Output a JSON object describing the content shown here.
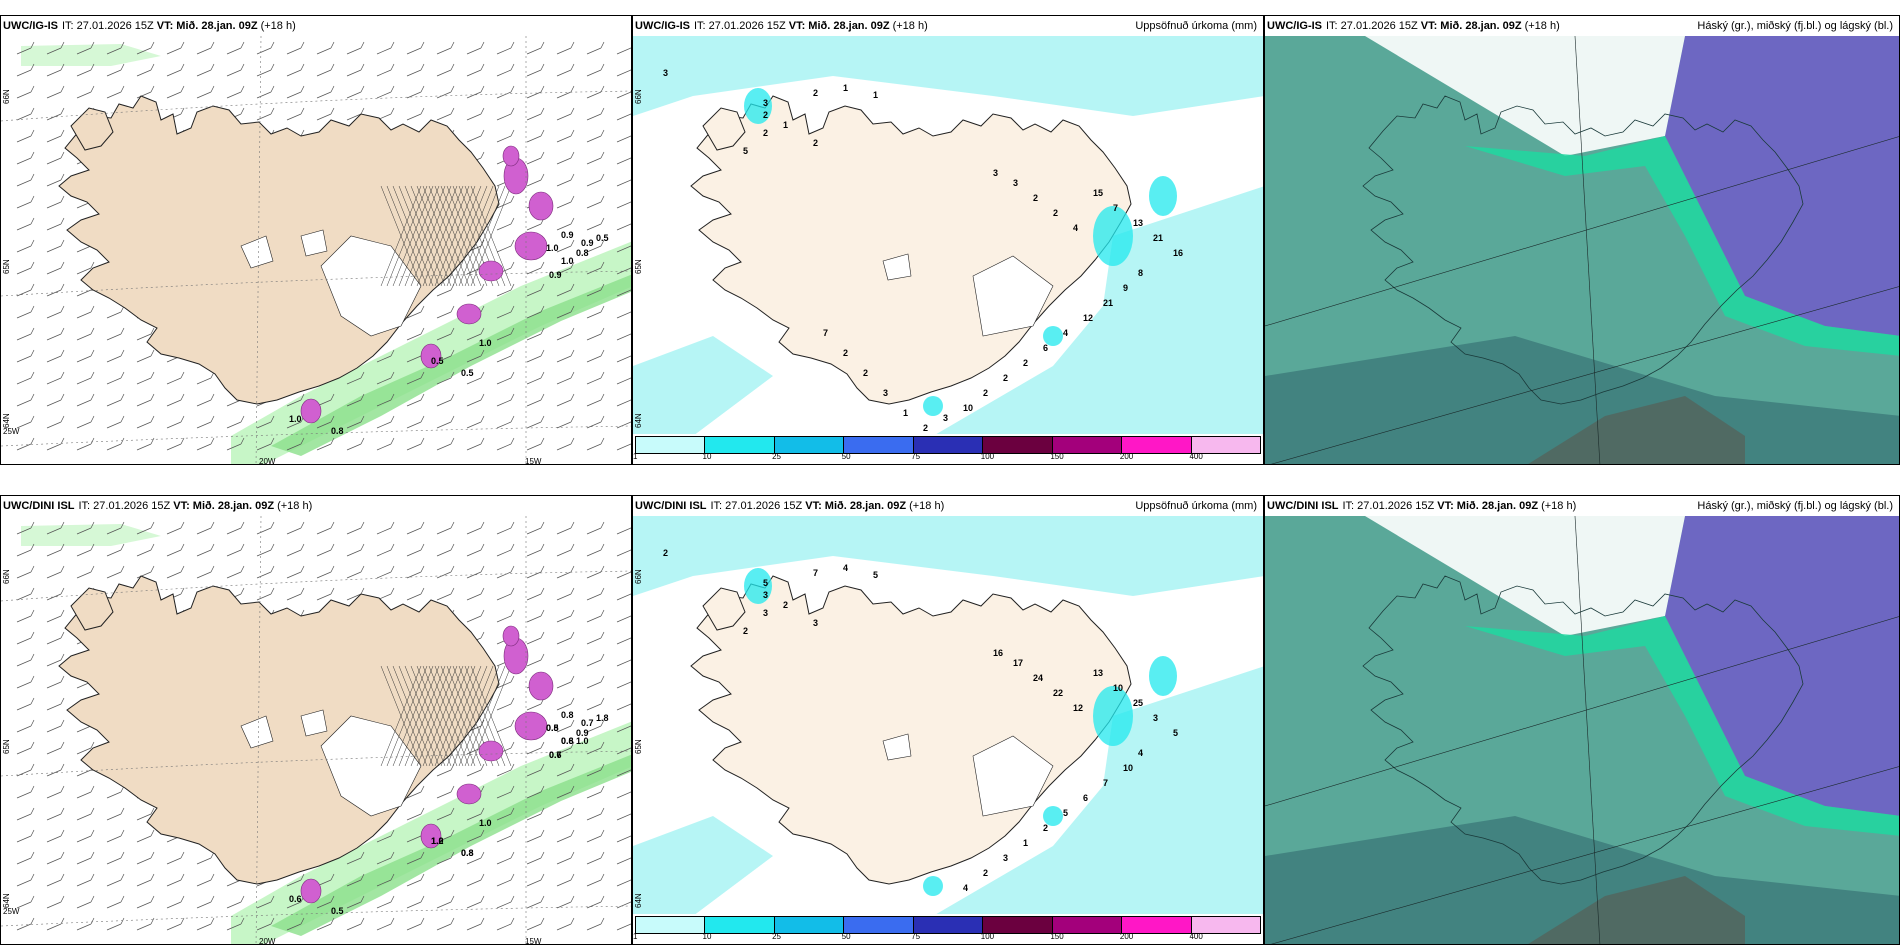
{
  "panels": [
    {
      "model": "UWC/IG-IS",
      "it": "IT: 27.01.2026 15Z",
      "vt": "VT: Mið. 28.jan. 09Z",
      "lead": "(+18 h)",
      "title": "",
      "labels": [
        "1.0",
        "1.0",
        "0.9",
        "0.5",
        "0.5",
        "1.0",
        "1.0",
        "0.8",
        "0.9",
        "0.8",
        "0.9",
        "0.5"
      ],
      "axis": [
        "66N",
        "65N",
        "64N",
        "25W",
        "20W",
        "15W"
      ]
    },
    {
      "model": "UWC/IG-IS",
      "it": "IT: 27.01.2026 15Z",
      "vt": "VT: Mið. 28.jan. 09Z",
      "lead": "(+18 h)",
      "title": "Uppsöfnuð úrkoma (mm)",
      "labels": [
        "3",
        "2",
        "1",
        "1",
        "2",
        "2",
        "2",
        "1",
        "5",
        "3",
        "3",
        "3",
        "2",
        "2",
        "4",
        "15",
        "7",
        "13",
        "21",
        "16",
        "8",
        "9",
        "21",
        "12",
        "4",
        "6",
        "2",
        "2",
        "2",
        "10",
        "3",
        "2",
        "1",
        "3",
        "2",
        "2",
        "7"
      ],
      "axis": [
        "66N",
        "65N",
        "64N"
      ]
    },
    {
      "model": "UWC/IG-IS",
      "it": "IT: 27.01.2026 15Z",
      "vt": "VT: Mið. 28.jan. 09Z",
      "lead": "(+18 h)",
      "title": "Háský (gr.), miðský (fj.bl.) og lágský (bl.)",
      "labels": [],
      "axis": []
    },
    {
      "model": "UWC/DINI ISL",
      "it": "IT: 27.01.2026 15Z",
      "vt": "VT: Mið. 28.jan. 09Z",
      "lead": "(+18 h)",
      "title": "",
      "labels": [
        "0.5",
        "0.6",
        "0.7",
        "1.2",
        "0.8",
        "1.0",
        "0.6",
        "0.5",
        "0.8",
        "0.9",
        "0.7",
        "1.8",
        "1.0",
        "0.8",
        "0.8",
        "0.6",
        "1.0",
        "0.8"
      ],
      "axis": [
        "66N",
        "65N",
        "64N",
        "25W",
        "20W",
        "15W"
      ]
    },
    {
      "model": "UWC/DINI ISL",
      "it": "IT: 27.01.2026 15Z",
      "vt": "VT: Mið. 28.jan. 09Z",
      "lead": "(+18 h)",
      "title": "Uppsöfnuð úrkoma (mm)",
      "labels": [
        "2",
        "7",
        "4",
        "5",
        "3",
        "3",
        "3",
        "2",
        "2",
        "5",
        "16",
        "17",
        "24",
        "22",
        "12",
        "13",
        "10",
        "25",
        "3",
        "5",
        "4",
        "10",
        "7",
        "6",
        "5",
        "2",
        "1",
        "3",
        "2",
        "4"
      ],
      "axis": [
        "66N",
        "65N",
        "64N"
      ]
    },
    {
      "model": "UWC/DINI ISL",
      "it": "IT: 27.01.2026 15Z",
      "vt": "VT: Mið. 28.jan. 09Z",
      "lead": "(+18 h)",
      "title": "Háský (gr.), miðský (fj.bl.) og lágský (bl.)",
      "labels": [],
      "axis": []
    }
  ],
  "colorbar": {
    "colors": [
      "#c8fbfb",
      "#22e8ee",
      "#12bde8",
      "#3a6cf0",
      "#2a2fb4",
      "#6b003f",
      "#a3007b",
      "#ff17c6",
      "#f7b8ee"
    ],
    "ticks": [
      "1",
      "10",
      "25",
      "50",
      "75",
      "100",
      "150",
      "200",
      "400"
    ]
  },
  "colors": {
    "land": "#f0dcc4",
    "wetbulb_ice": "#fbf1e4",
    "precip": "#b6f5f5",
    "green_light": "#c4f5c4",
    "green_mid": "#8be08b",
    "magenta": "#d060d0",
    "cloud_teal": "#5aa899",
    "cloud_dark": "#326a70",
    "cloud_violet": "#6f5fc6",
    "cloud_green": "#20d8a0"
  }
}
